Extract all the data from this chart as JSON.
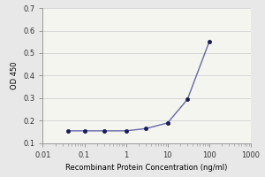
{
  "x_values": [
    0.04,
    0.1,
    0.3,
    1,
    3,
    10,
    30,
    100
  ],
  "y_values": [
    0.155,
    0.155,
    0.155,
    0.155,
    0.165,
    0.19,
    0.295,
    0.55
  ],
  "line_color": "#6666aa",
  "marker_color": "#1a1a5a",
  "marker_style": "o",
  "marker_size": 3,
  "line_width": 1.0,
  "xlabel": "Recombinant Protein Concentration (ng/ml)",
  "ylabel": "OD 450",
  "xlim": [
    0.01,
    1000
  ],
  "ylim": [
    0.1,
    0.7
  ],
  "yticks": [
    0.1,
    0.2,
    0.3,
    0.4,
    0.5,
    0.6,
    0.7
  ],
  "xticks": [
    0.01,
    0.1,
    1,
    10,
    100,
    1000
  ],
  "xtick_labels": [
    "0.01",
    "0.1",
    "1",
    "10",
    "100",
    "1000"
  ],
  "background_color": "#e8e8e8",
  "plot_bg_color": "#f5f5f0",
  "xlabel_fontsize": 6,
  "ylabel_fontsize": 6,
  "tick_fontsize": 6,
  "grid_color": "#d0d0d0",
  "spine_color": "#999999"
}
